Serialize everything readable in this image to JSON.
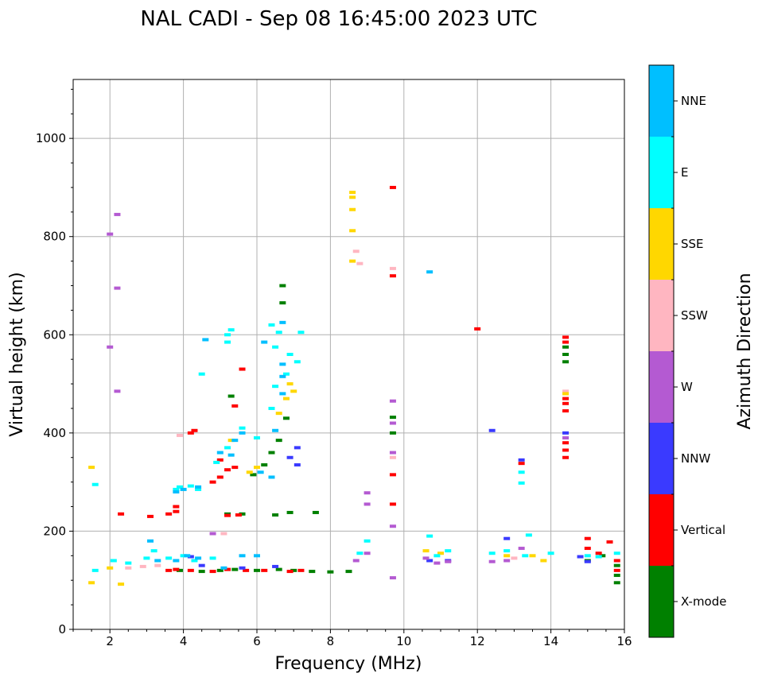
{
  "chart_data": {
    "type": "scatter",
    "title": "NAL CADI - Sep 08 16:45:00 2023 UTC",
    "xlabel": "Frequency (MHz)",
    "ylabel": "Virtual height (km)",
    "xlim": [
      1,
      16
    ],
    "ylim": [
      0,
      1120
    ],
    "xticks": [
      2,
      4,
      6,
      8,
      10,
      12,
      14,
      16
    ],
    "yticks": [
      0,
      200,
      400,
      600,
      800,
      1000
    ],
    "grid": true,
    "colorbar": {
      "label": "Azimuth Direction",
      "categories": [
        {
          "name": "X-mode",
          "color": "#008000"
        },
        {
          "name": "Vertical",
          "color": "#ff0000"
        },
        {
          "name": "NNW",
          "color": "#3a3aff"
        },
        {
          "name": "W",
          "color": "#b45ad2"
        },
        {
          "name": "SSW",
          "color": "#ffb6c1"
        },
        {
          "name": "SSE",
          "color": "#ffd700"
        },
        {
          "name": "E",
          "color": "#00ffff"
        },
        {
          "name": "NNE",
          "color": "#00bfff"
        }
      ]
    },
    "series": [
      {
        "name": "X-mode",
        "points": [
          [
            3.9,
            120
          ],
          [
            4.5,
            118
          ],
          [
            5.0,
            120
          ],
          [
            5.4,
            122
          ],
          [
            6.0,
            120
          ],
          [
            6.6,
            122
          ],
          [
            7.0,
            120
          ],
          [
            7.5,
            118
          ],
          [
            8.0,
            117
          ],
          [
            8.5,
            118
          ],
          [
            5.2,
            235
          ],
          [
            5.6,
            235
          ],
          [
            6.5,
            233
          ],
          [
            6.9,
            238
          ],
          [
            7.6,
            238
          ],
          [
            6.4,
            360
          ],
          [
            6.6,
            385
          ],
          [
            6.2,
            335
          ],
          [
            5.9,
            315
          ],
          [
            6.8,
            430
          ],
          [
            5.3,
            475
          ],
          [
            6.7,
            700
          ],
          [
            6.7,
            665
          ],
          [
            9.7,
            400
          ],
          [
            9.7,
            432
          ],
          [
            14.4,
            560
          ],
          [
            14.4,
            545
          ],
          [
            14.4,
            575
          ],
          [
            15.0,
            140
          ],
          [
            15.4,
            150
          ],
          [
            15.8,
            95
          ],
          [
            15.8,
            110
          ],
          [
            15.8,
            130
          ]
        ]
      },
      {
        "name": "Vertical",
        "points": [
          [
            3.6,
            120
          ],
          [
            3.8,
            122
          ],
          [
            4.2,
            120
          ],
          [
            4.8,
            118
          ],
          [
            5.2,
            122
          ],
          [
            5.7,
            120
          ],
          [
            6.2,
            120
          ],
          [
            6.9,
            118
          ],
          [
            7.2,
            120
          ],
          [
            3.8,
            240
          ],
          [
            3.8,
            250
          ],
          [
            5.2,
            232
          ],
          [
            5.5,
            233
          ],
          [
            3.6,
            235
          ],
          [
            2.3,
            235
          ],
          [
            3.1,
            230
          ],
          [
            4.2,
            400
          ],
          [
            4.3,
            405
          ],
          [
            4.8,
            300
          ],
          [
            5.0,
            310
          ],
          [
            5.2,
            325
          ],
          [
            5.4,
            330
          ],
          [
            5.0,
            345
          ],
          [
            5.4,
            455
          ],
          [
            5.6,
            530
          ],
          [
            9.7,
            900
          ],
          [
            9.7,
            720
          ],
          [
            9.7,
            315
          ],
          [
            9.7,
            255
          ],
          [
            12.0,
            612
          ],
          [
            13.2,
            338
          ],
          [
            14.4,
            350
          ],
          [
            14.4,
            365
          ],
          [
            14.4,
            380
          ],
          [
            14.4,
            445
          ],
          [
            14.4,
            460
          ],
          [
            14.4,
            470
          ],
          [
            14.4,
            585
          ],
          [
            14.4,
            595
          ],
          [
            15.0,
            185
          ],
          [
            15.0,
            165
          ],
          [
            15.3,
            155
          ],
          [
            15.6,
            178
          ],
          [
            15.8,
            120
          ],
          [
            15.8,
            140
          ]
        ]
      },
      {
        "name": "NNW",
        "points": [
          [
            4.5,
            130
          ],
          [
            4.2,
            148
          ],
          [
            5.6,
            125
          ],
          [
            6.5,
            128
          ],
          [
            7.1,
            370
          ],
          [
            7.1,
            335
          ],
          [
            6.9,
            350
          ],
          [
            12.4,
            405
          ],
          [
            12.8,
            185
          ],
          [
            13.2,
            345
          ],
          [
            14.4,
            400
          ],
          [
            10.7,
            140
          ],
          [
            11.2,
            140
          ],
          [
            15.0,
            138
          ],
          [
            14.8,
            148
          ]
        ]
      },
      {
        "name": "W",
        "points": [
          [
            8.7,
            140
          ],
          [
            9.0,
            155
          ],
          [
            9.0,
            255
          ],
          [
            9.0,
            278
          ],
          [
            9.7,
            360
          ],
          [
            9.7,
            420
          ],
          [
            9.7,
            465
          ],
          [
            9.7,
            210
          ],
          [
            9.7,
            105
          ],
          [
            10.6,
            145
          ],
          [
            10.9,
            135
          ],
          [
            11.2,
            138
          ],
          [
            12.4,
            138
          ],
          [
            12.8,
            140
          ],
          [
            13.2,
            165
          ],
          [
            14.4,
            390
          ],
          [
            2.0,
            575
          ],
          [
            2.2,
            485
          ],
          [
            2.0,
            805
          ],
          [
            2.2,
            845
          ],
          [
            2.2,
            695
          ],
          [
            4.8,
            195
          ]
        ]
      },
      {
        "name": "SSW",
        "points": [
          [
            2.5,
            125
          ],
          [
            2.9,
            128
          ],
          [
            3.3,
            130
          ],
          [
            8.7,
            770
          ],
          [
            8.8,
            745
          ],
          [
            9.7,
            350
          ],
          [
            9.7,
            735
          ],
          [
            13.0,
            145
          ],
          [
            14.4,
            485
          ],
          [
            3.9,
            395
          ],
          [
            5.1,
            195
          ]
        ]
      },
      {
        "name": "SSE",
        "points": [
          [
            1.5,
            95
          ],
          [
            2.0,
            125
          ],
          [
            2.3,
            92
          ],
          [
            1.5,
            330
          ],
          [
            8.6,
            890
          ],
          [
            8.6,
            880
          ],
          [
            8.6,
            855
          ],
          [
            8.6,
            812
          ],
          [
            8.6,
            750
          ],
          [
            10.6,
            160
          ],
          [
            11.0,
            155
          ],
          [
            12.8,
            150
          ],
          [
            13.5,
            150
          ],
          [
            13.8,
            140
          ],
          [
            14.4,
            480
          ],
          [
            5.3,
            385
          ],
          [
            5.8,
            320
          ],
          [
            6.0,
            330
          ],
          [
            6.6,
            440
          ],
          [
            6.8,
            470
          ],
          [
            6.9,
            500
          ],
          [
            7.0,
            485
          ]
        ]
      },
      {
        "name": "E",
        "points": [
          [
            1.6,
            120
          ],
          [
            2.1,
            140
          ],
          [
            2.5,
            135
          ],
          [
            3.0,
            145
          ],
          [
            3.2,
            160
          ],
          [
            3.6,
            145
          ],
          [
            4.0,
            150
          ],
          [
            4.3,
            140
          ],
          [
            4.8,
            145
          ],
          [
            8.8,
            155
          ],
          [
            9.0,
            180
          ],
          [
            10.7,
            190
          ],
          [
            10.9,
            150
          ],
          [
            11.2,
            160
          ],
          [
            12.4,
            155
          ],
          [
            12.8,
            160
          ],
          [
            13.3,
            150
          ],
          [
            13.4,
            192
          ],
          [
            13.2,
            320
          ],
          [
            13.2,
            298
          ],
          [
            14.0,
            155
          ],
          [
            15.0,
            150
          ],
          [
            15.3,
            148
          ],
          [
            15.8,
            155
          ],
          [
            5.2,
            600
          ],
          [
            5.3,
            610
          ],
          [
            6.4,
            620
          ],
          [
            6.6,
            605
          ],
          [
            6.5,
            575
          ],
          [
            6.9,
            560
          ],
          [
            7.2,
            605
          ],
          [
            7.1,
            545
          ],
          [
            6.8,
            520
          ],
          [
            6.4,
            450
          ],
          [
            6.5,
            495
          ],
          [
            6.0,
            390
          ],
          [
            5.6,
            410
          ],
          [
            5.2,
            370
          ],
          [
            4.9,
            340
          ],
          [
            4.4,
            285
          ],
          [
            3.8,
            285
          ],
          [
            3.9,
            290
          ],
          [
            4.2,
            292
          ],
          [
            5.2,
            585
          ],
          [
            4.5,
            520
          ],
          [
            1.6,
            295
          ]
        ]
      },
      {
        "name": "NNE",
        "points": [
          [
            3.1,
            180
          ],
          [
            3.3,
            140
          ],
          [
            3.8,
            140
          ],
          [
            4.1,
            150
          ],
          [
            4.4,
            145
          ],
          [
            5.1,
            125
          ],
          [
            5.6,
            150
          ],
          [
            6.0,
            150
          ],
          [
            10.7,
            728
          ],
          [
            3.8,
            280
          ],
          [
            4.0,
            285
          ],
          [
            4.4,
            290
          ],
          [
            5.0,
            360
          ],
          [
            5.4,
            385
          ],
          [
            5.6,
            400
          ],
          [
            6.1,
            320
          ],
          [
            6.4,
            310
          ],
          [
            6.7,
            480
          ],
          [
            6.7,
            515
          ],
          [
            6.7,
            540
          ],
          [
            6.5,
            405
          ],
          [
            6.7,
            625
          ],
          [
            6.2,
            585
          ],
          [
            5.3,
            355
          ],
          [
            4.6,
            590
          ]
        ]
      }
    ]
  }
}
